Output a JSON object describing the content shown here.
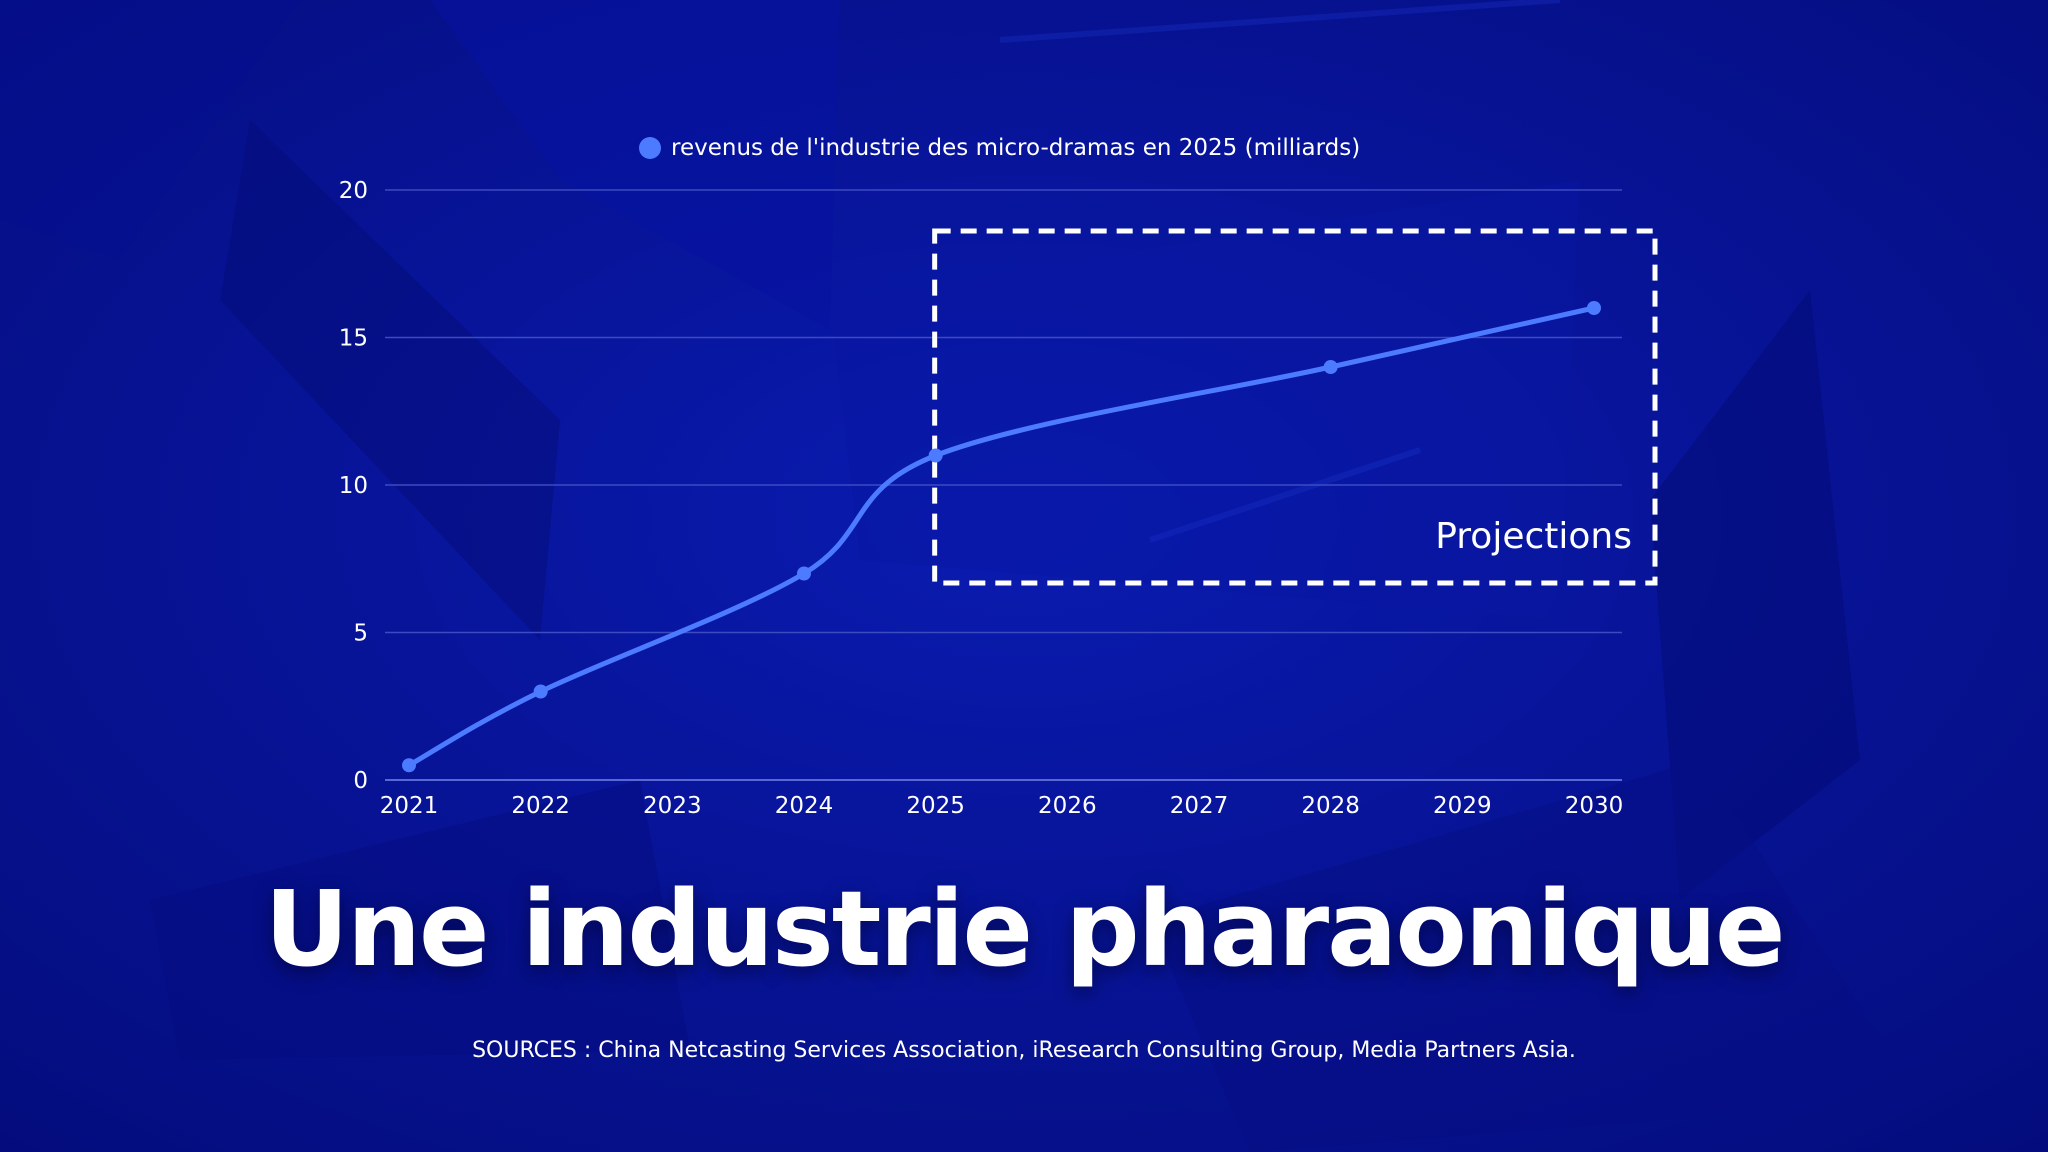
{
  "colors": {
    "background": "#050f8e",
    "series_line": "#4d7bff",
    "text": "#ffffff",
    "gridline": "#3d4bc2",
    "projection_box": "#ffffff"
  },
  "title": "Une industrie pharaonique",
  "sources": "SOURCES : China Netcasting Services Association, iResearch Consulting Group, Media Partners Asia.",
  "projection_label": "Projections",
  "chart_data": {
    "type": "line",
    "x": [
      "2021",
      "2022",
      "2023",
      "2024",
      "2025",
      "2026",
      "2027",
      "2028",
      "2029",
      "2030"
    ],
    "series": [
      {
        "name": "revenus de l'industrie des micro-dramas en 2025 (milliards)",
        "points": [
          {
            "x": "2021",
            "y": 0.5
          },
          {
            "x": "2022",
            "y": 3
          },
          {
            "x": "2024",
            "y": 7
          },
          {
            "x": "2025",
            "y": 11
          },
          {
            "x": "2028",
            "y": 14
          },
          {
            "x": "2030",
            "y": 16
          }
        ]
      }
    ],
    "ylim": [
      0,
      20
    ],
    "yticks": [
      0,
      5,
      10,
      15,
      20
    ],
    "grid": true,
    "legend_position": "top-center",
    "projection_range": [
      "2025",
      "2030"
    ]
  }
}
